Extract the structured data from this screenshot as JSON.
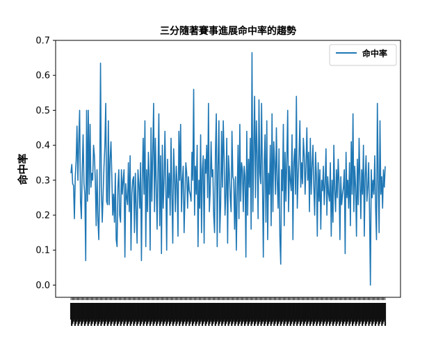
{
  "chart_data": {
    "type": "line",
    "title": "三分隨著賽事進展命中率的趨勢",
    "xlabel": "",
    "ylabel": "命中率",
    "ylim": [
      -0.035,
      0.7
    ],
    "yticks": [
      "0.0",
      "0.1",
      "0.2",
      "0.3",
      "0.4",
      "0.5",
      "0.6",
      "0.7"
    ],
    "grid": false,
    "legend_position": "top-right",
    "line_color": "#1f77b4",
    "series": [
      {
        "name": "命中率",
        "values": [
          0.32,
          0.345,
          0.29,
          0.285,
          0.19,
          0.31,
          0.355,
          0.455,
          0.3,
          0.41,
          0.5,
          0.24,
          0.19,
          0.33,
          0.43,
          0.29,
          0.26,
          0.07,
          0.5,
          0.24,
          0.5,
          0.26,
          0.46,
          0.28,
          0.32,
          0.3,
          0.4,
          0.37,
          0.3,
          0.17,
          0.33,
          0.19,
          0.13,
          0.28,
          0.635,
          0.27,
          0.18,
          0.26,
          0.34,
          0.4,
          0.52,
          0.24,
          0.23,
          0.47,
          0.23,
          0.36,
          0.41,
          0.31,
          0.2,
          0.26,
          0.18,
          0.32,
          0.13,
          0.11,
          0.28,
          0.33,
          0.2,
          0.18,
          0.33,
          0.26,
          0.3,
          0.33,
          0.08,
          0.29,
          0.25,
          0.23,
          0.35,
          0.21,
          0.37,
          0.1,
          0.26,
          0.3,
          0.31,
          0.15,
          0.32,
          0.22,
          0.12,
          0.33,
          0.29,
          0.22,
          0.35,
          0.07,
          0.3,
          0.42,
          0.26,
          0.47,
          0.11,
          0.33,
          0.21,
          0.38,
          0.31,
          0.1,
          0.45,
          0.24,
          0.38,
          0.52,
          0.21,
          0.42,
          0.29,
          0.16,
          0.33,
          0.49,
          0.17,
          0.37,
          0.09,
          0.4,
          0.22,
          0.3,
          0.44,
          0.28,
          0.1,
          0.36,
          0.25,
          0.32,
          0.2,
          0.42,
          0.26,
          0.12,
          0.39,
          0.31,
          0.21,
          0.34,
          0.29,
          0.14,
          0.44,
          0.3,
          0.46,
          0.21,
          0.3,
          0.34,
          0.15,
          0.25,
          0.35,
          0.32,
          0.22,
          0.31,
          0.27,
          0.26,
          0.24,
          0.38,
          0.3,
          0.56,
          0.2,
          0.34,
          0.26,
          0.4,
          0.11,
          0.3,
          0.22,
          0.43,
          0.15,
          0.33,
          0.37,
          0.12,
          0.36,
          0.32,
          0.4,
          0.25,
          0.52,
          0.21,
          0.27,
          0.41,
          0.31,
          0.33,
          0.2,
          0.15,
          0.38,
          0.49,
          0.11,
          0.34,
          0.47,
          0.15,
          0.23,
          0.44,
          0.28,
          0.47,
          0.36,
          0.2,
          0.26,
          0.42,
          0.12,
          0.37,
          0.32,
          0.25,
          0.21,
          0.44,
          0.31,
          0.3,
          0.16,
          0.31,
          0.1,
          0.26,
          0.4,
          0.19,
          0.46,
          0.24,
          0.35,
          0.33,
          0.21,
          0.34,
          0.31,
          0.08,
          0.44,
          0.2,
          0.36,
          0.28,
          0.42,
          0.16,
          0.665,
          0.21,
          0.39,
          0.54,
          0.25,
          0.47,
          0.37,
          0.19,
          0.53,
          0.32,
          0.29,
          0.52,
          0.3,
          0.08,
          0.35,
          0.43,
          0.18,
          0.47,
          0.13,
          0.32,
          0.26,
          0.4,
          0.17,
          0.49,
          0.21,
          0.41,
          0.35,
          0.26,
          0.45,
          0.3,
          0.22,
          0.39,
          0.14,
          0.06,
          0.33,
          0.27,
          0.46,
          0.17,
          0.38,
          0.24,
          0.36,
          0.5,
          0.21,
          0.34,
          0.3,
          0.27,
          0.43,
          0.13,
          0.35,
          0.39,
          0.26,
          0.54,
          0.22,
          0.31,
          0.37,
          0.47,
          0.28,
          0.35,
          0.29,
          0.42,
          0.37,
          0.26,
          0.34,
          0.45,
          0.3,
          0.38,
          0.21,
          0.42,
          0.26,
          0.34,
          0.4,
          0.28,
          0.2,
          0.38,
          0.31,
          0.14,
          0.35,
          0.24,
          0.33,
          0.16,
          0.3,
          0.27,
          0.34,
          0.23,
          0.29,
          0.39,
          0.2,
          0.31,
          0.26,
          0.24,
          0.35,
          0.14,
          0.3,
          0.18,
          0.4,
          0.27,
          0.21,
          0.33,
          0.25,
          0.36,
          0.29,
          0.13,
          0.31,
          0.23,
          0.26,
          0.28,
          0.33,
          0.09,
          0.38,
          0.25,
          0.3,
          0.22,
          0.35,
          0.17,
          0.41,
          0.26,
          0.49,
          0.21,
          0.34,
          0.28,
          0.14,
          0.36,
          0.23,
          0.42,
          0.3,
          0.19,
          0.33,
          0.26,
          0.4,
          0.14,
          0.31,
          0.37,
          0.24,
          0.28,
          0.35,
          0.21,
          0.0,
          0.33,
          0.25,
          0.3,
          0.26,
          0.37,
          0.22,
          0.13,
          0.52,
          0.3,
          0.15,
          0.47,
          0.26,
          0.31,
          0.22,
          0.33,
          0.28,
          0.34
        ]
      }
    ]
  },
  "x_tick_count": 386,
  "legend": {
    "label": "命中率"
  }
}
